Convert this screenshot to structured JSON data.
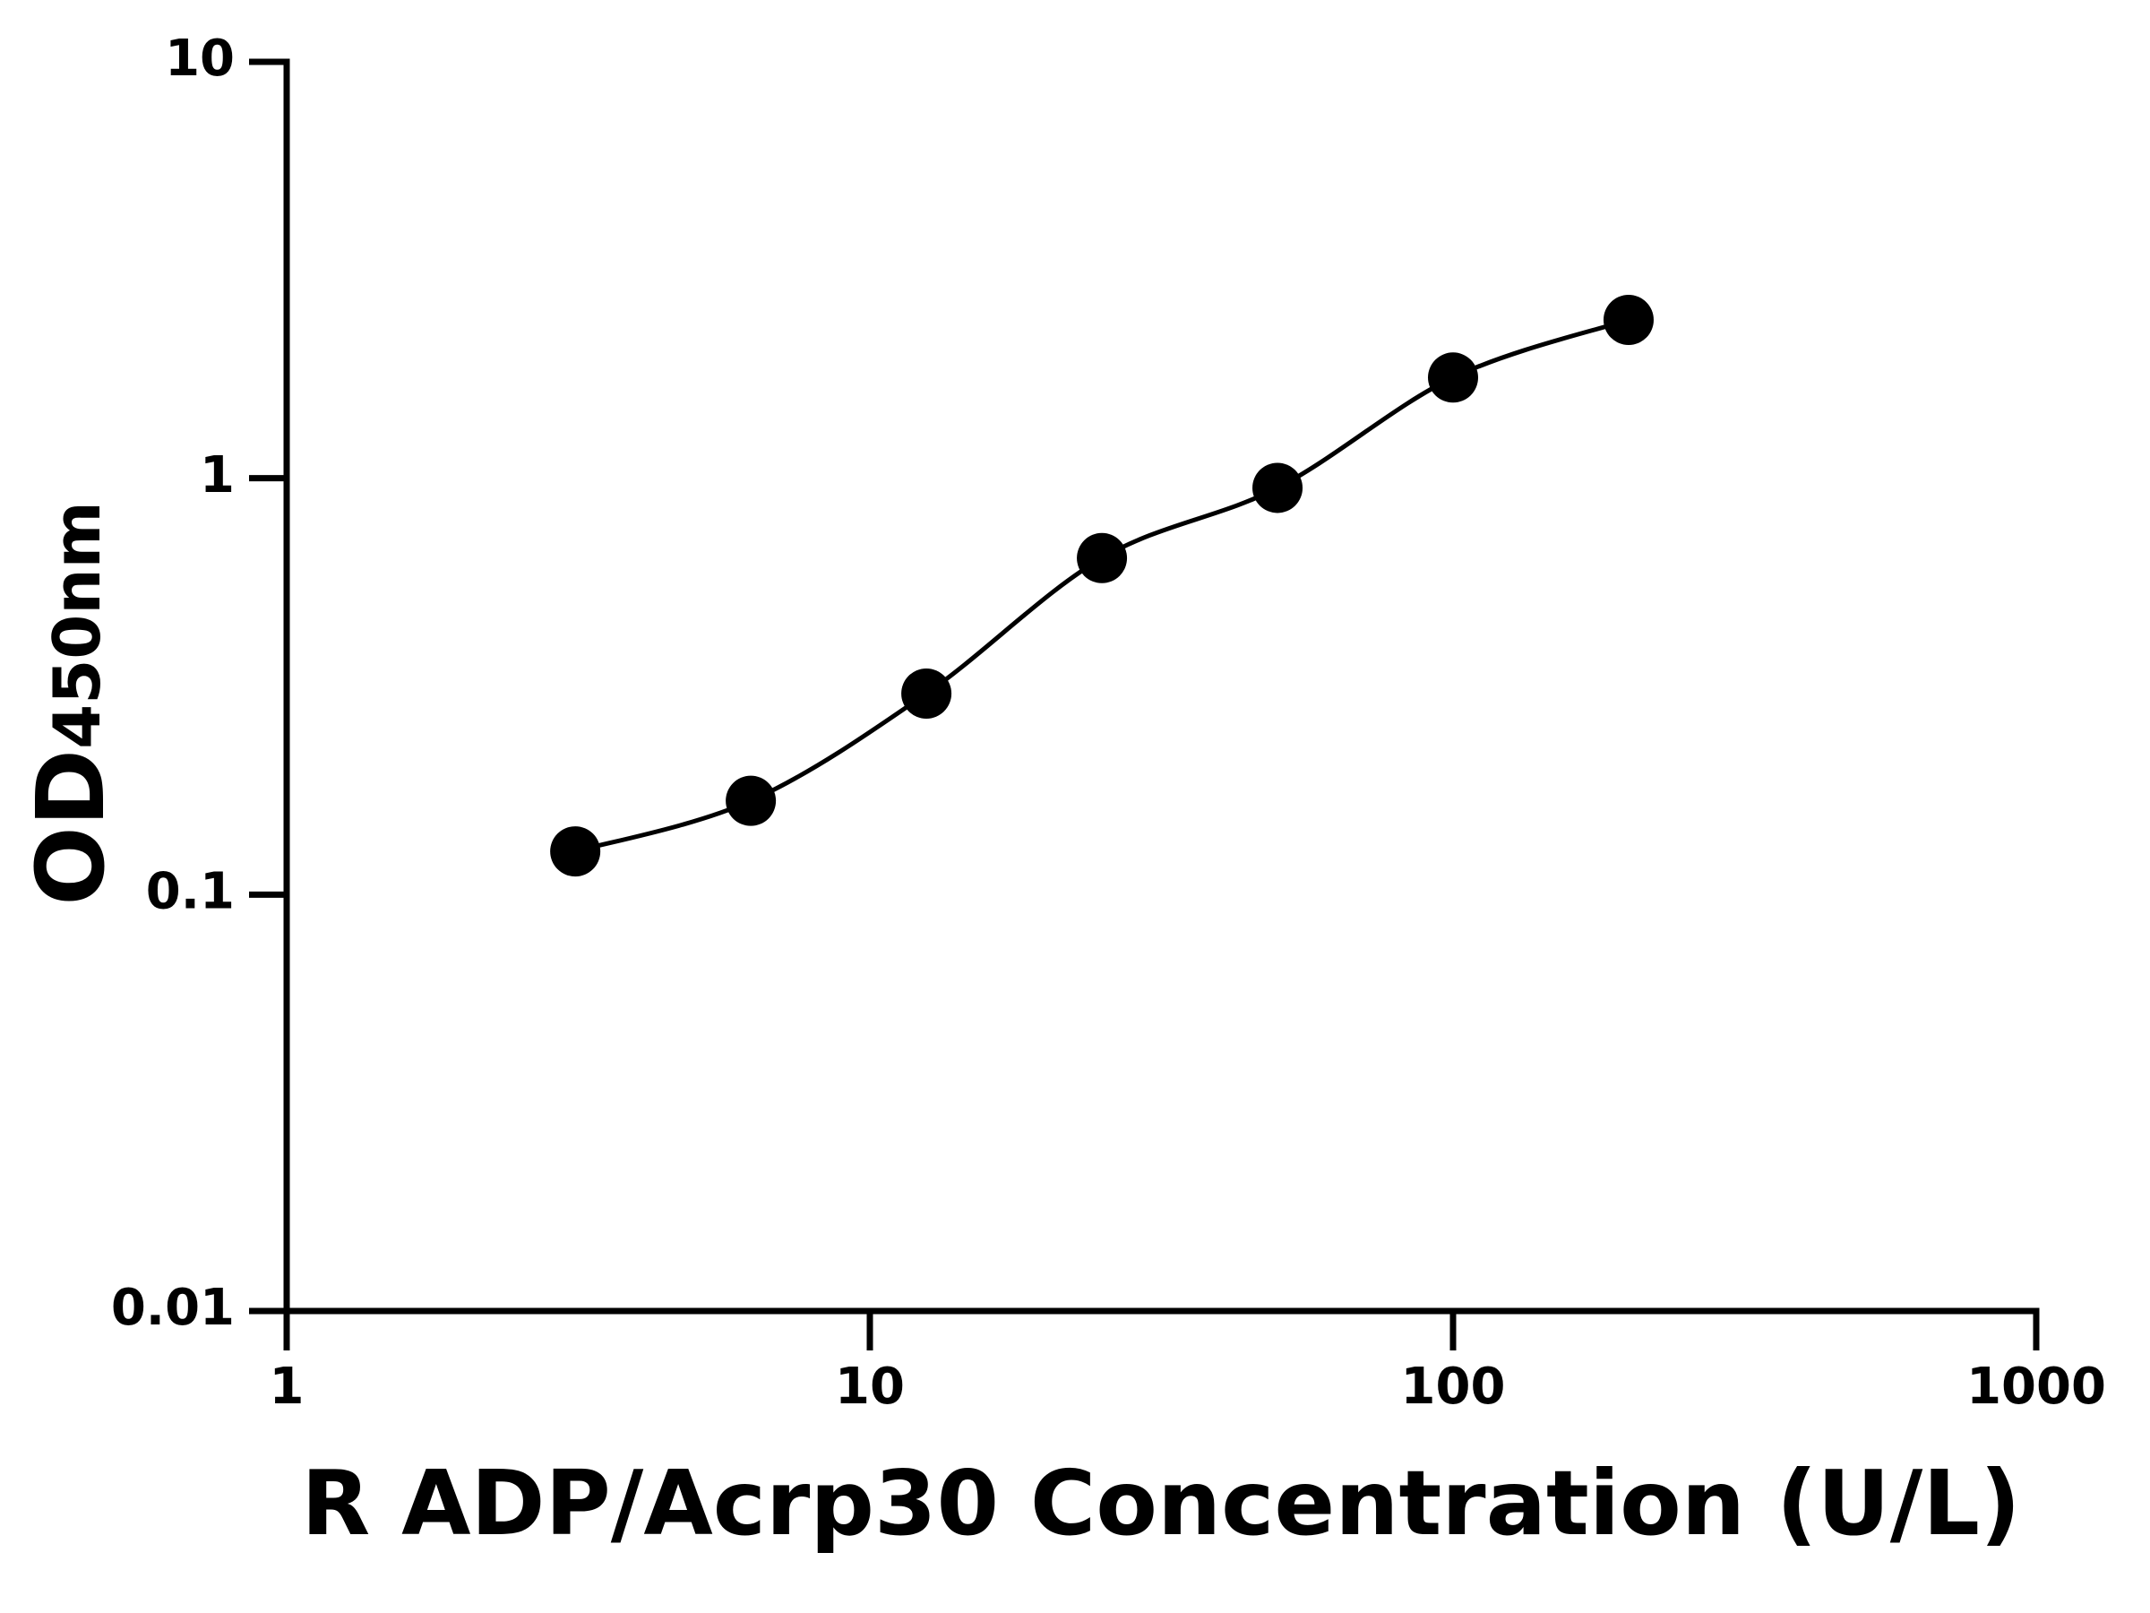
{
  "chart_data": {
    "type": "scatter",
    "xlabel": "R ADP/Acrp30 Concentration (U/L)",
    "ylabel": "OD",
    "ylabel_subscript": "450nm",
    "x": [
      3.125,
      6.25,
      12.5,
      25,
      50,
      100,
      200
    ],
    "series": [
      {
        "color": "#000000",
        "values": [
          0.127,
          0.168,
          0.304,
          0.643,
          0.948,
          1.745,
          2.4
        ]
      }
    ],
    "xlim": [
      1,
      1000
    ],
    "ylim": [
      0.01,
      10
    ],
    "xticks": [
      1,
      10,
      100,
      1000
    ],
    "yticks": [
      0.01,
      0.1,
      1,
      10
    ],
    "xscale": "log",
    "yscale": "log",
    "fit_curve": true
  }
}
